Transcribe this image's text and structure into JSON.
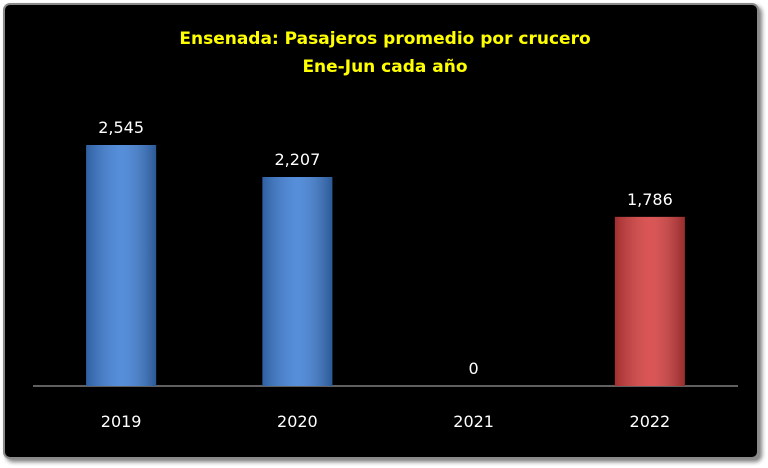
{
  "chart_data": {
    "type": "bar",
    "title": "Ensenada: Pasajeros promedio por crucero",
    "subtitle": "Ene-Jun cada año",
    "categories": [
      "2019",
      "2020",
      "2021",
      "2022"
    ],
    "values": [
      2545,
      2207,
      0,
      1786
    ],
    "value_labels": [
      "2,545",
      "2,207",
      "0",
      "1,786"
    ],
    "colors": [
      "#3f7fd6",
      "#3f7fd6",
      "#3f7fd6",
      "#d63f3f"
    ]
  }
}
